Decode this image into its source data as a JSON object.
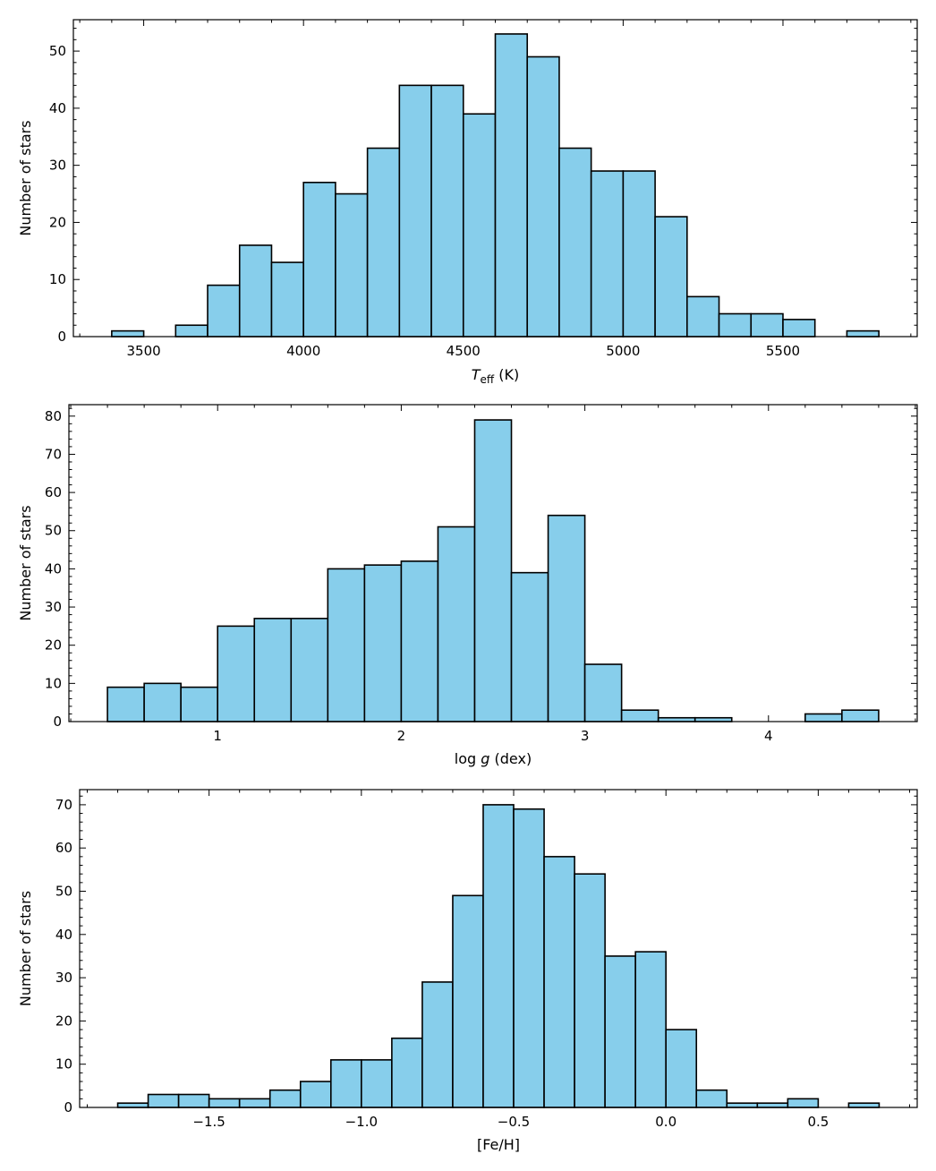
{
  "chart_data": [
    {
      "type": "bar",
      "title": "",
      "xlabel": "T_eff (K)",
      "xlabel_main": "T",
      "xlabel_sub": "eff",
      "xlabel_unit": " (K)",
      "ylabel": "Number of stars",
      "bin_edges": [
        3400,
        3500,
        3600,
        3700,
        3800,
        3900,
        4000,
        4100,
        4200,
        4300,
        4400,
        4500,
        4600,
        4700,
        4800,
        4900,
        5000,
        5100,
        5200,
        5300,
        5400,
        5500,
        5600,
        5700,
        5800
      ],
      "values": [
        1,
        0,
        2,
        9,
        16,
        13,
        27,
        25,
        33,
        44,
        44,
        39,
        53,
        49,
        33,
        29,
        29,
        21,
        7,
        4,
        4,
        3,
        0,
        1
      ],
      "xlim": [
        3280,
        5920
      ],
      "ylim": [
        0,
        55.5
      ],
      "xticks": [
        3500,
        4000,
        4500,
        5000,
        5500
      ],
      "xtick_labels": [
        "3500",
        "4000",
        "4500",
        "5000",
        "5500"
      ],
      "xminor": 100,
      "yticks": [
        0,
        10,
        20,
        30,
        40,
        50
      ],
      "ytick_labels": [
        "0",
        "10",
        "20",
        "30",
        "40",
        "50"
      ],
      "yminor": 2
    },
    {
      "type": "bar",
      "title": "",
      "xlabel": "log g (dex)",
      "xlabel_main": "log",
      "xlabel_sub": "g",
      "xlabel_unit": " (dex)",
      "ylabel": "Number of stars",
      "bin_edges": [
        0.4,
        0.6,
        0.8,
        1.0,
        1.2,
        1.4,
        1.6,
        1.8,
        2.0,
        2.2,
        2.4,
        2.6,
        2.8,
        3.0,
        3.2,
        3.4,
        3.6,
        3.8,
        4.0,
        4.2,
        4.4,
        4.6
      ],
      "values": [
        9,
        10,
        9,
        25,
        27,
        27,
        40,
        41,
        42,
        51,
        79,
        39,
        54,
        15,
        3,
        1,
        1,
        0,
        0,
        2,
        3
      ],
      "xlim": [
        0.19,
        4.81
      ],
      "ylim": [
        0,
        83
      ],
      "xticks": [
        1,
        2,
        3,
        4
      ],
      "xtick_labels": [
        "1",
        "2",
        "3",
        "4"
      ],
      "xminor": 0.2,
      "yticks": [
        0,
        10,
        20,
        30,
        40,
        50,
        60,
        70,
        80
      ],
      "ytick_labels": [
        "0",
        "10",
        "20",
        "30",
        "40",
        "50",
        "60",
        "70",
        "80"
      ],
      "yminor": 2
    },
    {
      "type": "bar",
      "title": "",
      "xlabel": "[Fe/H]",
      "xlabel_main": "[Fe/H]",
      "xlabel_sub": "",
      "xlabel_unit": "",
      "ylabel": "Number of stars",
      "bin_edges": [
        -1.8,
        -1.7,
        -1.6,
        -1.5,
        -1.4,
        -1.3,
        -1.2,
        -1.1,
        -1.0,
        -0.9,
        -0.8,
        -0.7,
        -0.6,
        -0.5,
        -0.4,
        -0.3,
        -0.2,
        -0.1,
        0.0,
        0.1,
        0.2,
        0.3,
        0.4,
        0.5,
        0.6,
        0.7
      ],
      "values": [
        1,
        3,
        3,
        2,
        2,
        4,
        6,
        11,
        11,
        16,
        29,
        49,
        70,
        69,
        58,
        54,
        35,
        36,
        18,
        4,
        1,
        1,
        2,
        0,
        1
      ],
      "xlim": [
        -1.925,
        0.825
      ],
      "ylim": [
        0,
        73.5
      ],
      "xticks": [
        -1.5,
        -1.0,
        -0.5,
        0.0,
        0.5
      ],
      "xtick_labels": [
        "−1.5",
        "−1.0",
        "−0.5",
        "0.0",
        "0.5"
      ],
      "xminor": 0.1,
      "yticks": [
        0,
        10,
        20,
        30,
        40,
        50,
        60,
        70
      ],
      "ytick_labels": [
        "0",
        "10",
        "20",
        "30",
        "40",
        "50",
        "60",
        "70"
      ],
      "yminor": 2
    }
  ]
}
